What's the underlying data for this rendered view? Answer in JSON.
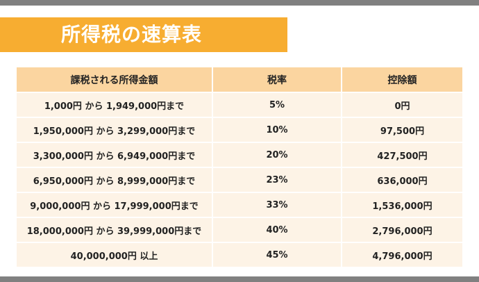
{
  "title": "所得税の速算表",
  "table": {
    "headers": [
      "課税される所得金額",
      "税率",
      "控除額"
    ],
    "rows": [
      [
        "1,000円 から 1,949,000円まで",
        "5%",
        "0円"
      ],
      [
        "1,950,000円 から 3,299,000円まで",
        "10%",
        "97,500円"
      ],
      [
        "3,300,000円 から 6,949,000円まで",
        "20%",
        "427,500円"
      ],
      [
        "6,950,000円 から 8,999,000円まで",
        "23%",
        "636,000円"
      ],
      [
        "9,000,000円 から 17,999,000円まで",
        "33%",
        "1,536,000円"
      ],
      [
        "18,000,000円 から 39,999,000円まで",
        "40%",
        "2,796,000円"
      ],
      [
        "40,000,000円 以上",
        "45%",
        "4,796,000円"
      ]
    ]
  },
  "colors": {
    "title_bg": "#f7ad31",
    "header_bg": "#fbd5a0",
    "cell_bg": "#fdf3e6",
    "frame_bar": "#808080"
  }
}
